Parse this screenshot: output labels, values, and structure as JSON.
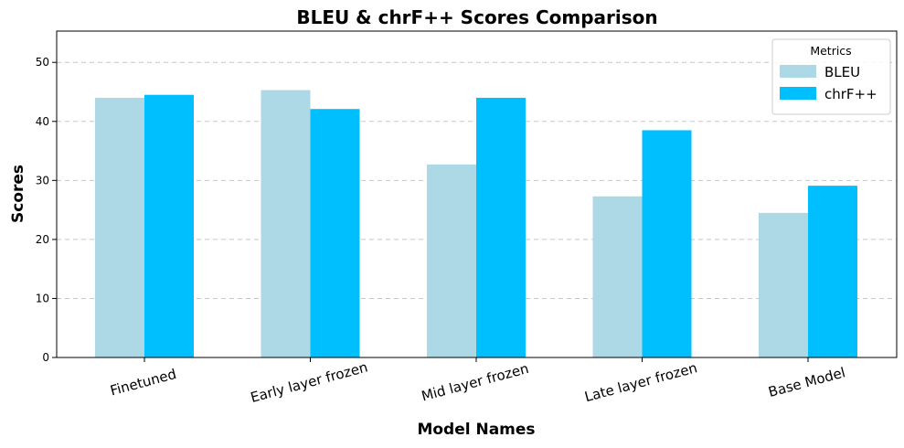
{
  "chart_data": {
    "type": "bar",
    "title": "BLEU & chrF++ Scores Comparison",
    "xlabel": "Model Names",
    "ylabel": "Scores",
    "categories": [
      "Finetuned",
      "Early layer frozen",
      "Mid layer frozen",
      "Late layer frozen",
      "Base Model"
    ],
    "series": [
      {
        "name": "BLEU",
        "color": "#add8e6",
        "values": [
          44.0,
          45.3,
          32.7,
          27.3,
          24.5
        ]
      },
      {
        "name": "chrF++",
        "color": "#00bfff",
        "values": [
          44.5,
          42.1,
          44.0,
          38.5,
          29.1
        ]
      }
    ],
    "ylim": [
      0,
      55.3
    ],
    "yticks": [
      0,
      10,
      20,
      30,
      40,
      50
    ],
    "grid": "y-dashed",
    "legend": {
      "title": "Metrics",
      "placement": "top-right"
    }
  }
}
